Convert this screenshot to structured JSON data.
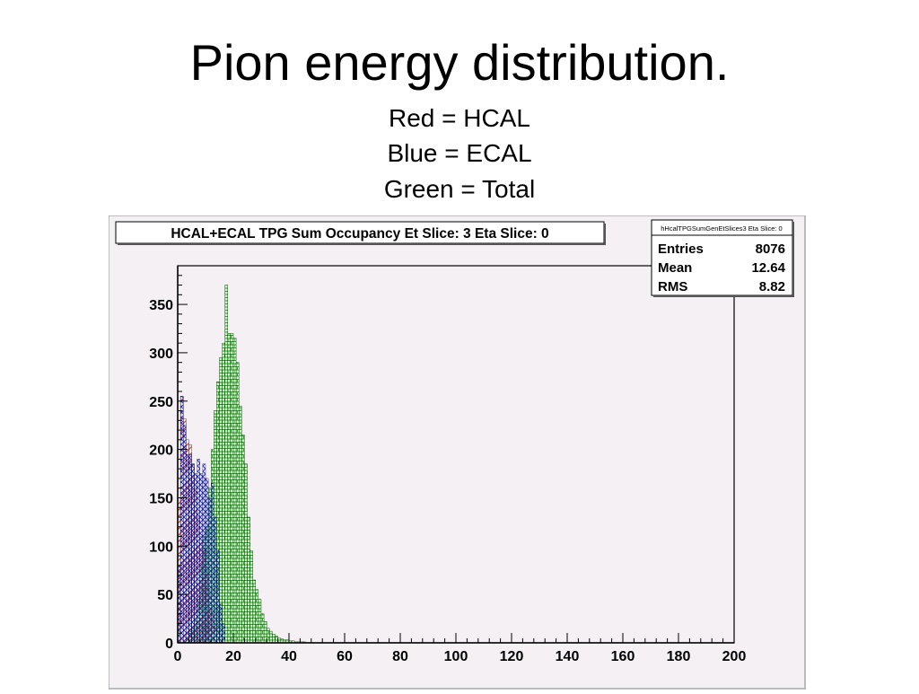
{
  "slide": {
    "title": "Pion energy distribution.",
    "legend_lines": [
      "Red = HCAL",
      "Blue = ECAL",
      "Green = Total"
    ]
  },
  "chart_data": {
    "type": "histogram",
    "title": "HCAL+ECAL TPG Sum Occupancy Et Slice: 3 Eta Slice: 0",
    "xlabel": "",
    "ylabel": "",
    "xlim": [
      0,
      200
    ],
    "ylim": [
      0,
      390
    ],
    "x_ticks": [
      "0",
      "20",
      "40",
      "60",
      "80",
      "100",
      "120",
      "140",
      "160",
      "180",
      "200"
    ],
    "y_ticks": [
      "0",
      "50",
      "100",
      "150",
      "200",
      "250",
      "300",
      "350"
    ],
    "bin_width": 1,
    "stats_box": {
      "name": "hHcalTPGSumGenEtSlices3 Eta Slice: 0",
      "rows": [
        {
          "label": "Entries",
          "value": "8076"
        },
        {
          "label": "Mean",
          "value": "12.64"
        },
        {
          "label": "RMS",
          "value": "8.82"
        }
      ]
    },
    "series": [
      {
        "color": "#e02020",
        "x": [
          0,
          1,
          2,
          3,
          4,
          5,
          6,
          7,
          8,
          9,
          10,
          11,
          12,
          13
        ],
        "values": [
          150,
          255,
          232,
          210,
          205,
          185,
          160,
          130,
          110,
          95,
          70,
          50,
          30,
          15
        ]
      },
      {
        "color": "#2030e0",
        "x": [
          0,
          1,
          2,
          3,
          4,
          5,
          6,
          7,
          8,
          9,
          10,
          11,
          12,
          13,
          14,
          15,
          16
        ],
        "values": [
          80,
          255,
          225,
          195,
          195,
          185,
          175,
          190,
          175,
          185,
          170,
          150,
          165,
          130,
          95,
          40,
          20
        ]
      },
      {
        "color": "#20c020",
        "x": [
          3,
          4,
          5,
          6,
          7,
          8,
          9,
          10,
          11,
          12,
          13,
          14,
          15,
          16,
          17,
          18,
          19,
          20,
          21,
          22,
          23,
          24,
          25,
          26,
          27,
          28,
          29,
          30,
          31,
          32,
          33,
          34,
          35,
          36,
          37,
          38,
          39,
          40,
          41,
          42,
          43,
          44,
          45
        ],
        "values": [
          5,
          10,
          15,
          25,
          45,
          80,
          110,
          120,
          160,
          200,
          240,
          270,
          295,
          310,
          370,
          320,
          320,
          315,
          290,
          245,
          215,
          185,
          130,
          95,
          65,
          55,
          45,
          30,
          22,
          15,
          12,
          9,
          7,
          5,
          4,
          3,
          3,
          2,
          2,
          1,
          1,
          1,
          1
        ]
      }
    ]
  }
}
